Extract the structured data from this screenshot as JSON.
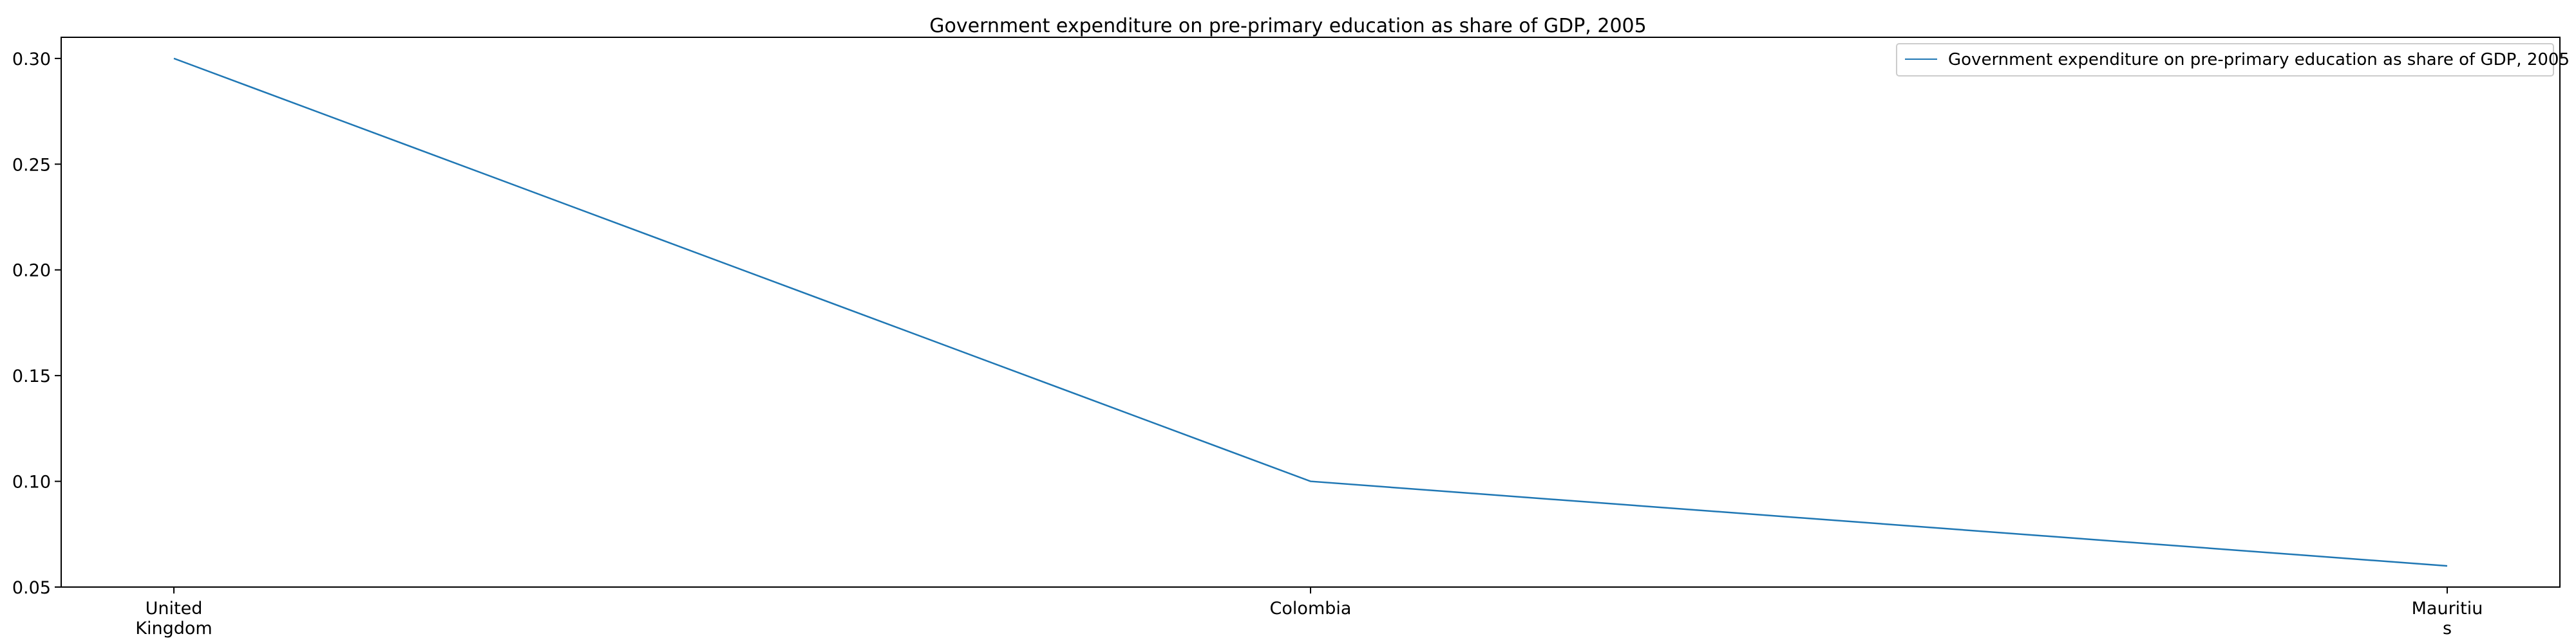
{
  "chart_data": {
    "type": "line",
    "title": "Government expenditure on pre-primary education as share of GDP, 2005",
    "xlabel": "",
    "ylabel": "",
    "categories": [
      [
        "United",
        "Kingdom"
      ],
      [
        "Colombia"
      ],
      [
        "Mauritiu",
        "s"
      ]
    ],
    "series": [
      {
        "name": "Government expenditure on pre-primary education as share of GDP, 2005",
        "values": [
          0.3,
          0.1,
          0.06
        ],
        "color": "#1f77b4"
      }
    ],
    "ylim": [
      0.05,
      0.31
    ],
    "yticks": [
      0.05,
      0.1,
      0.15,
      0.2,
      0.25,
      0.3
    ],
    "ytick_labels": [
      "0.05",
      "0.10",
      "0.15",
      "0.20",
      "0.25",
      "0.30"
    ],
    "grid": false,
    "legend_position": "top-right"
  }
}
